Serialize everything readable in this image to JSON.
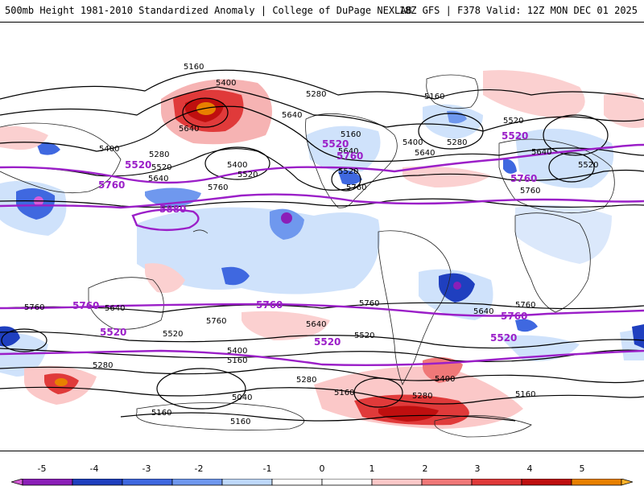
{
  "header": {
    "left": "500mb Height 1981-2010 Standardized Anomaly | College of DuPage NEXLAB",
    "right": "18Z GFS | F378 Valid: 12Z MON DEC 01 2025"
  },
  "colorbar": {
    "ticks": [
      "-5",
      "-4",
      "-3",
      "-2",
      "-1",
      "0",
      "1",
      "2",
      "3",
      "4",
      "5"
    ],
    "colors": [
      "#d65cd6",
      "#8b1fb8",
      "#1f3fbf",
      "#3f68e0",
      "#6f98ee",
      "#bed8fa",
      "#ffffff",
      "#ffffff",
      "#fbc8c8",
      "#f07878",
      "#e03a3a",
      "#bf0f0f",
      "#e88000",
      "#ffb42b"
    ]
  },
  "map": {
    "contour_labels_black": [
      "5160",
      "5400",
      "5280",
      "5640",
      "5520",
      "5760",
      "5040"
    ],
    "contour_labels_purple": [
      "5520",
      "5760",
      "5880"
    ]
  }
}
